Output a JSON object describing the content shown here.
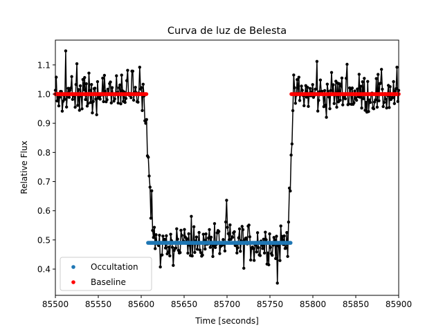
{
  "chart_data": {
    "type": "line",
    "title": "Curva de luz de Belesta",
    "xlabel": "Time [seconds]",
    "ylabel": "Relative Flux",
    "xlim": [
      85500,
      85900
    ],
    "ylim": [
      0.31,
      1.185
    ],
    "xticks": [
      85500,
      85550,
      85600,
      85650,
      85700,
      85750,
      85800,
      85850,
      85900
    ],
    "yticks": [
      0.4,
      0.5,
      0.6,
      0.7,
      0.8,
      0.9,
      1.0,
      1.1
    ],
    "xtick_labels": [
      "85500",
      "85550",
      "85600",
      "85650",
      "85700",
      "85750",
      "85800",
      "85850",
      "85900"
    ],
    "ytick_labels": [
      "0.4",
      "0.5",
      "0.6",
      "0.7",
      "0.8",
      "0.9",
      "1.0",
      "1.1"
    ],
    "grid": false,
    "legend_position": "lower-left",
    "light_curve": {
      "color": "#000000",
      "x_start": 85500,
      "x_end": 85900,
      "n_points": 400,
      "baseline_level": 1.0,
      "occultation_level": 0.49,
      "ingress": [
        85604,
        85614
      ],
      "egress": [
        85770,
        85778
      ],
      "noise_amplitude": 0.035,
      "outlier_peaks": [
        {
          "x": 85512,
          "y": 1.148
        },
        {
          "x": 85525,
          "y": 1.104
        },
        {
          "x": 85598,
          "y": 1.092
        },
        {
          "x": 85699,
          "y": 0.636
        },
        {
          "x": 85759,
          "y": 0.352
        },
        {
          "x": 85805,
          "y": 1.112
        },
        {
          "x": 85840,
          "y": 1.102
        },
        {
          "x": 85898,
          "y": 1.092
        }
      ]
    },
    "series": [
      {
        "name": "Occultation",
        "color": "#1f77b4",
        "x_range": [
          85608,
          85774
        ],
        "value": 0.49
      },
      {
        "name": "Baseline",
        "color": "#ff0000",
        "segments": [
          {
            "x_range": [
              85500,
              85606
            ],
            "value": 1.0
          },
          {
            "x_range": [
              85775,
              85900
            ],
            "value": 1.0
          }
        ]
      }
    ]
  }
}
